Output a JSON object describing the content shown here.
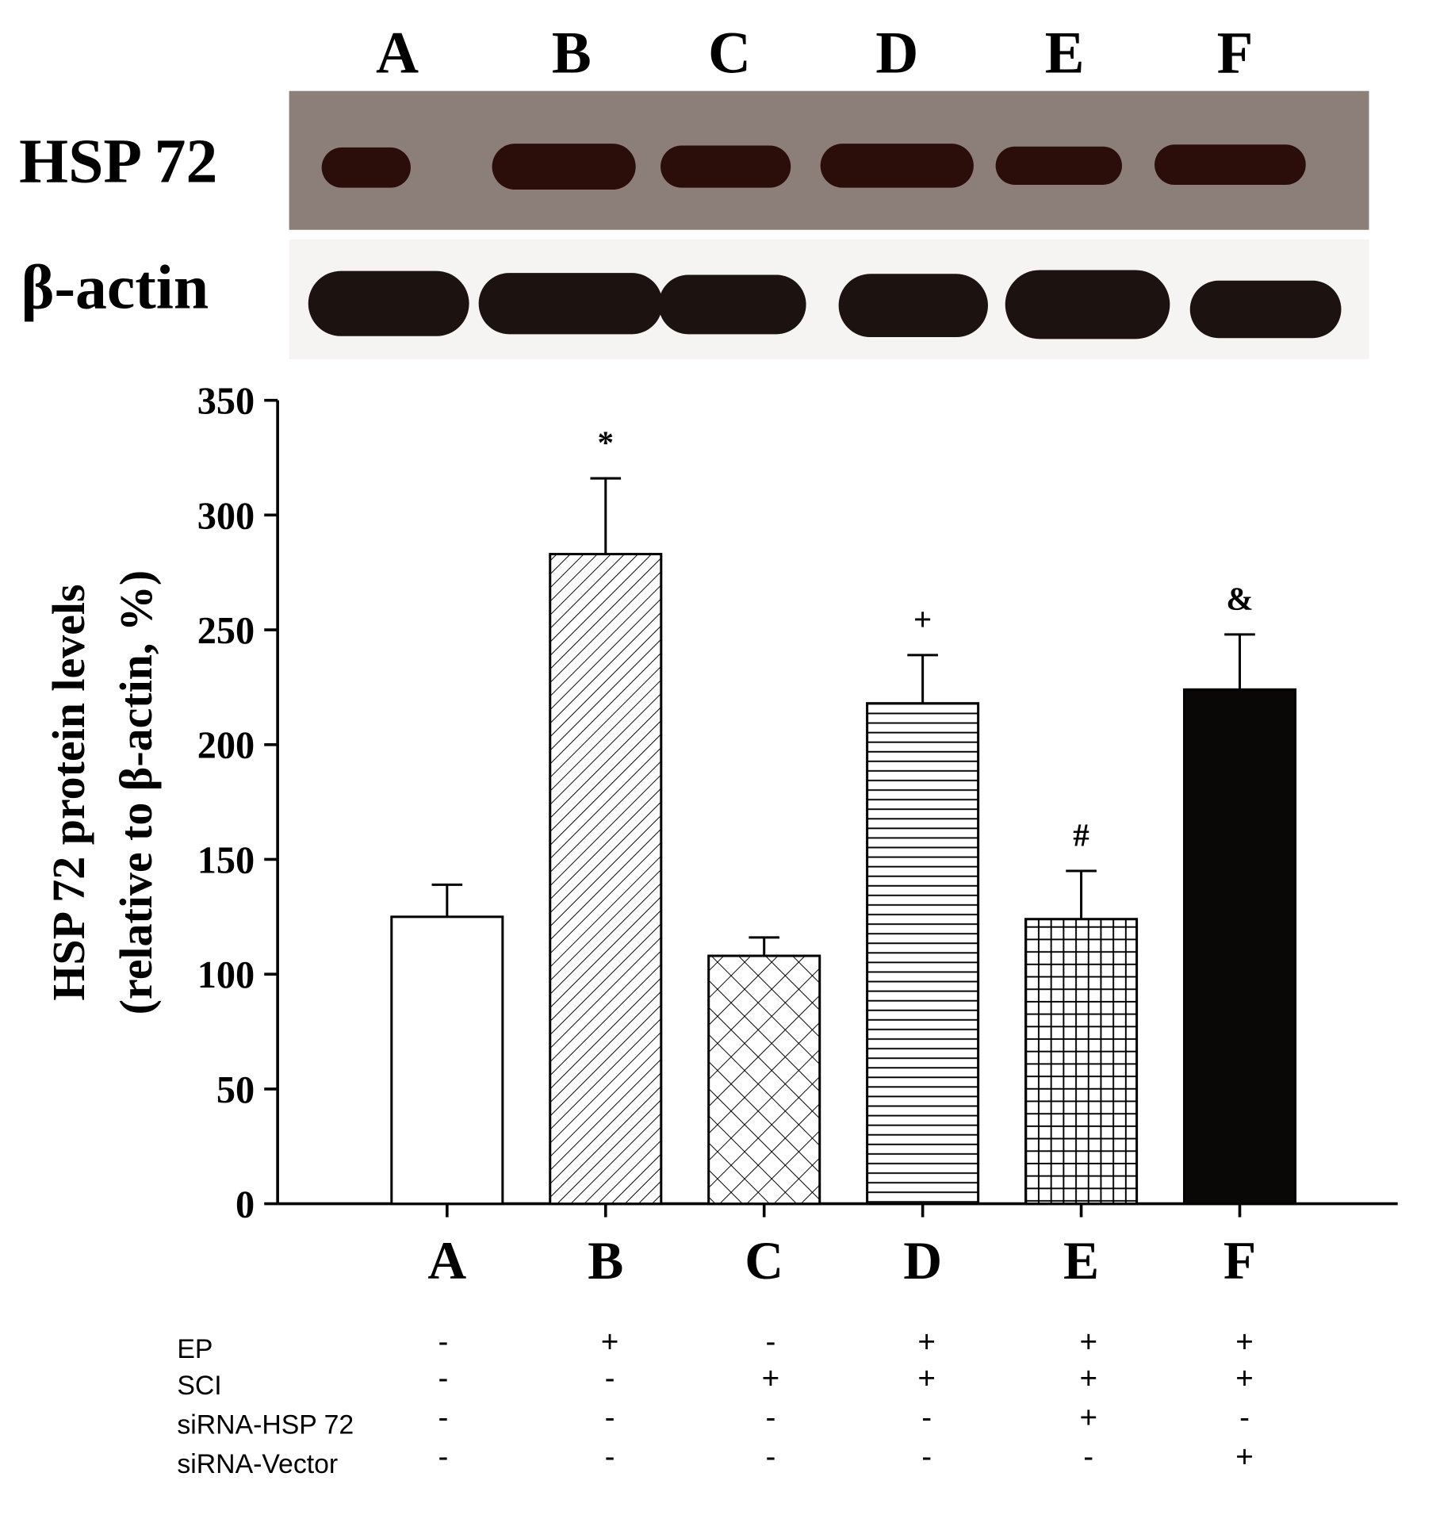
{
  "blot": {
    "lanes": [
      "A",
      "B",
      "C",
      "D",
      "E",
      "F"
    ],
    "rows": [
      "HSP 72",
      "β-actin"
    ]
  },
  "chart_data": {
    "type": "bar",
    "ylabel": [
      "HSP 72 protein levels",
      "(relative to β-actin, %)"
    ],
    "categories": [
      "A",
      "B",
      "C",
      "D",
      "E",
      "F"
    ],
    "values": [
      125,
      283,
      108,
      218,
      124,
      224
    ],
    "errors": [
      14,
      33,
      8,
      21,
      21,
      24
    ],
    "annotations": [
      null,
      "*",
      null,
      "+",
      "#",
      "&"
    ],
    "hatches": [
      "none",
      "diagonal",
      "crosshatch",
      "horizontal",
      "grid",
      "solid"
    ],
    "ylim": [
      0,
      350
    ],
    "yticks": [
      0,
      50,
      100,
      150,
      200,
      250,
      300,
      350
    ],
    "grid": false
  },
  "conditions": [
    {
      "name": "EP",
      "values": [
        "-",
        "+",
        "-",
        "+",
        "+",
        "+"
      ]
    },
    {
      "name": "SCI",
      "values": [
        "-",
        "-",
        "+",
        "+",
        "+",
        "+"
      ]
    },
    {
      "name": "siRNA-HSP 72",
      "values": [
        "-",
        "-",
        "-",
        "-",
        "+",
        "-"
      ]
    },
    {
      "name": "siRNA-Vector",
      "values": [
        "-",
        "-",
        "-",
        "-",
        "-",
        "+"
      ]
    }
  ]
}
